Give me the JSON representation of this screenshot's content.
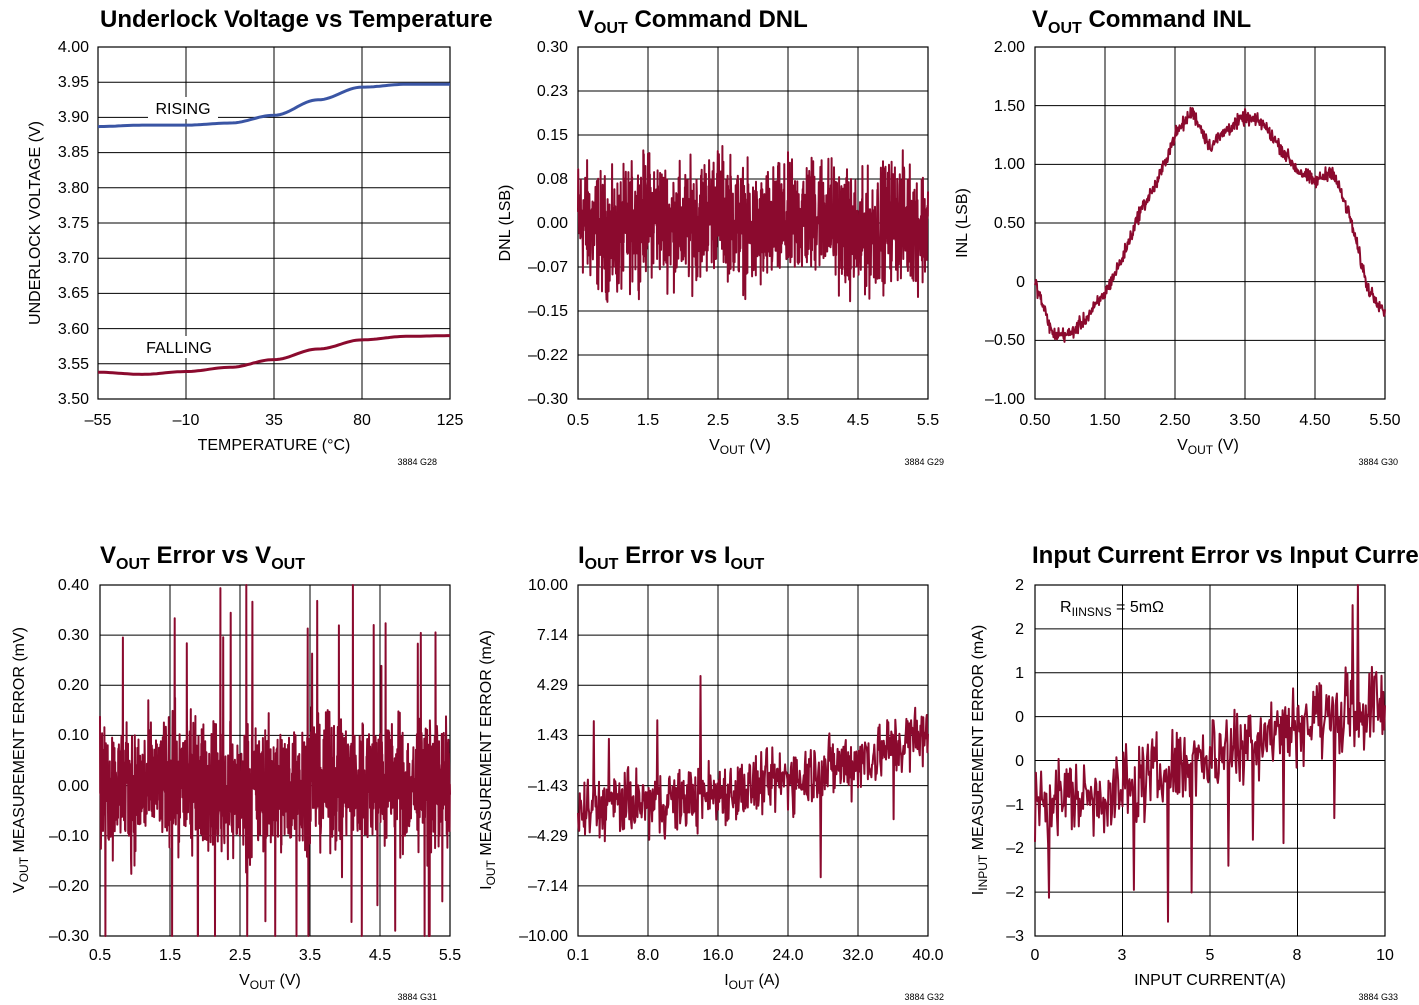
{
  "colors": {
    "dark_red": "#8b0a2e",
    "blue": "#3a55a4",
    "grid": "#000000"
  },
  "charts": [
    {
      "title_main": "Underlock Voltage vs Temperature",
      "xlabel_main": "TEMPERATURE (°C)",
      "ylabel_main": "UNDERLOCK VOLTAGE (V)",
      "figure_code": "3884 G28",
      "x_ticks": [
        "–55",
        "–10",
        "35",
        "80",
        "125"
      ],
      "y_ticks": [
        "4.00",
        "3.95",
        "3.90",
        "3.85",
        "3.80",
        "3.75",
        "3.70",
        "3.65",
        "3.60",
        "3.55",
        "3.50"
      ],
      "annotations": [
        "RISING",
        "FALLING"
      ]
    },
    {
      "title_main": "V",
      "title_sub": "OUT",
      "title_rest": " Command DNL",
      "xlabel_main": "V",
      "xlabel_sub": "OUT",
      "xlabel_rest": " (V)",
      "ylabel_main": "DNL (LSB)",
      "figure_code": "3884 G29",
      "x_ticks": [
        "0.5",
        "1.5",
        "2.5",
        "3.5",
        "4.5",
        "5.5"
      ],
      "y_ticks": [
        "0.30",
        "0.23",
        "0.15",
        "0.08",
        "0.00",
        "–0.07",
        "–0.15",
        "–0.22",
        "–0.30"
      ]
    },
    {
      "title_main": "V",
      "title_sub": "OUT",
      "title_rest": " Command INL",
      "xlabel_main": "V",
      "xlabel_sub": "OUT",
      "xlabel_rest": " (V)",
      "ylabel_main": "INL (LSB)",
      "figure_code": "3884 G30",
      "x_ticks": [
        "0.50",
        "1.50",
        "2.50",
        "3.50",
        "4.50",
        "5.50"
      ],
      "y_ticks": [
        "2.00",
        "1.50",
        "1.00",
        "0.50",
        "0",
        "–0.50",
        "–1.00"
      ]
    },
    {
      "title_main": "V",
      "title_sub": "OUT",
      "title_rest": " Error vs V",
      "title_sub2": "OUT",
      "xlabel_main": "V",
      "xlabel_sub": "OUT",
      "xlabel_rest": " (V)",
      "ylabel_main": "V",
      "ylabel_sub": "OUT",
      "ylabel_rest": " MEASUREMENT ERROR (mV)",
      "figure_code": "3884 G31",
      "x_ticks": [
        "0.5",
        "1.5",
        "2.5",
        "3.5",
        "4.5",
        "5.5"
      ],
      "y_ticks": [
        "0.40",
        "0.30",
        "0.20",
        "0.10",
        "0.00",
        "–0.10",
        "–0.20",
        "–0.30"
      ]
    },
    {
      "title_main": "I",
      "title_sub": "OUT",
      "title_rest": " Error vs I",
      "title_sub2": "OUT",
      "xlabel_main": "I",
      "xlabel_sub": "OUT",
      "xlabel_rest": " (A)",
      "ylabel_main": "I",
      "ylabel_sub": "OUT",
      "ylabel_rest": " MEASUREMENT ERROR (mA)",
      "figure_code": "3884 G32",
      "x_ticks": [
        "0.1",
        "8.0",
        "16.0",
        "24.0",
        "32.0",
        "40.0"
      ],
      "y_ticks": [
        "10.00",
        "7.14",
        "4.29",
        "1.43",
        "–1.43",
        "–4.29",
        "–7.14",
        "–10.00"
      ]
    },
    {
      "title_main": "Input Current Error vs Input Current",
      "xlabel_main": "INPUT CURRENT(A)",
      "ylabel_main": "I",
      "ylabel_sub": "INPUT",
      "ylabel_rest": " MEASUREMENT ERROR (mA)",
      "figure_code": "3884 G33",
      "x_ticks": [
        "0",
        "3",
        "5",
        "8",
        "10"
      ],
      "y_ticks": [
        "2",
        "2",
        "1",
        "0",
        "0",
        "–1",
        "–2",
        "–2",
        "–3"
      ],
      "annotation_main": "R",
      "annotation_sub": "IINSNS",
      "annotation_rest": " = 5mΩ"
    }
  ],
  "chart_data": [
    {
      "type": "line",
      "title": "Underlock Voltage vs Temperature",
      "xlabel": "TEMPERATURE (°C)",
      "ylabel": "UNDERLOCK VOLTAGE (V)",
      "xlim": [
        -55,
        125
      ],
      "ylim": [
        3.5,
        4.0
      ],
      "grid": true,
      "x": [
        -55,
        -32.5,
        -10,
        12.5,
        35,
        57.5,
        80,
        102.5,
        125
      ],
      "series": [
        {
          "name": "RISING",
          "color": "#3a55a4",
          "values": [
            3.887,
            3.889,
            3.889,
            3.892,
            3.903,
            3.925,
            3.943,
            3.947,
            3.947
          ]
        },
        {
          "name": "FALLING",
          "color": "#8b0a2e",
          "values": [
            3.538,
            3.535,
            3.539,
            3.545,
            3.556,
            3.571,
            3.584,
            3.589,
            3.59
          ]
        }
      ]
    },
    {
      "type": "line",
      "title": "VOUT Command DNL",
      "xlabel": "VOUT (V)",
      "ylabel": "DNL (LSB)",
      "xlim": [
        0.5,
        5.5
      ],
      "ylim": [
        -0.3,
        0.3
      ],
      "grid": true,
      "x": [
        0.5,
        1.0,
        1.5,
        2.0,
        2.5,
        3.0,
        3.5,
        4.0,
        4.5,
        5.0,
        5.5
      ],
      "series": [
        {
          "color": "#8b0a2e",
          "values": [
            0.01,
            -0.03,
            0.02,
            -0.01,
            0.03,
            -0.02,
            0.0,
            0.02,
            -0.03,
            0.01,
            -0.01
          ],
          "band_upper": 0.17,
          "band_lower": -0.17
        }
      ]
    },
    {
      "type": "line",
      "title": "VOUT Command INL",
      "xlabel": "VOUT (V)",
      "ylabel": "INL (LSB)",
      "xlim": [
        0.5,
        5.5
      ],
      "ylim": [
        -1.0,
        2.0
      ],
      "grid": true,
      "x": [
        0.5,
        0.75,
        1.0,
        1.25,
        1.5,
        1.75,
        2.0,
        2.25,
        2.5,
        2.75,
        3.0,
        3.25,
        3.5,
        3.75,
        4.0,
        4.25,
        4.5,
        4.75,
        5.0,
        5.25,
        5.5
      ],
      "series": [
        {
          "color": "#8b0a2e",
          "values": [
            0.0,
            -0.45,
            -0.45,
            -0.3,
            -0.1,
            0.2,
            0.6,
            0.85,
            1.25,
            1.45,
            1.15,
            1.3,
            1.4,
            1.35,
            1.15,
            0.95,
            0.85,
            0.95,
            0.55,
            -0.05,
            -0.25
          ]
        }
      ]
    },
    {
      "type": "line",
      "title": "VOUT Error vs VOUT",
      "xlabel": "VOUT (V)",
      "ylabel": "VOUT MEASUREMENT ERROR (mV)",
      "xlim": [
        0.5,
        5.5
      ],
      "ylim": [
        -0.3,
        0.4
      ],
      "grid": true,
      "x": [
        0.5,
        1.0,
        1.5,
        2.0,
        2.5,
        3.0,
        3.5,
        4.0,
        4.5,
        5.0,
        5.5
      ],
      "series": [
        {
          "color": "#8b0a2e",
          "values": [
            0.0,
            -0.01,
            0.01,
            0.0,
            -0.02,
            0.0,
            0.01,
            0.0,
            0.01,
            0.0,
            0.0
          ],
          "band_upper": 0.21,
          "band_lower": -0.22
        }
      ]
    },
    {
      "type": "line",
      "title": "IOUT Error vs IOUT",
      "xlabel": "IOUT (A)",
      "ylabel": "IOUT MEASUREMENT ERROR (mA)",
      "xlim": [
        0.1,
        40.0
      ],
      "ylim": [
        -10.0,
        10.0
      ],
      "grid": true,
      "x": [
        0.1,
        4,
        8,
        12,
        16,
        20,
        24,
        28,
        32,
        36,
        40
      ],
      "series": [
        {
          "color": "#8b0a2e",
          "values": [
            -3.0,
            -2.5,
            -2.5,
            -2.2,
            -1.8,
            -1.6,
            -1.0,
            -0.5,
            0.0,
            0.8,
            1.5
          ],
          "band_upper": 3.2,
          "band_lower": -3.2
        }
      ]
    },
    {
      "type": "line",
      "title": "Input Current Error vs Input Current",
      "xlabel": "INPUT CURRENT(A)",
      "ylabel": "IINPUT MEASUREMENT ERROR (mA)",
      "xlim": [
        0,
        10
      ],
      "ylim": [
        -3,
        2
      ],
      "grid": true,
      "annotation": "RIINSNS = 5mΩ",
      "x": [
        0,
        1,
        2,
        3,
        4,
        5,
        6,
        7,
        8,
        9,
        10
      ],
      "series": [
        {
          "color": "#8b0a2e",
          "values": [
            -1.1,
            -1.0,
            -1.0,
            -0.8,
            -0.6,
            -0.4,
            -0.2,
            0.0,
            0.1,
            0.2,
            0.3
          ],
          "band_upper": 1.0,
          "band_lower": -1.0
        }
      ]
    }
  ]
}
